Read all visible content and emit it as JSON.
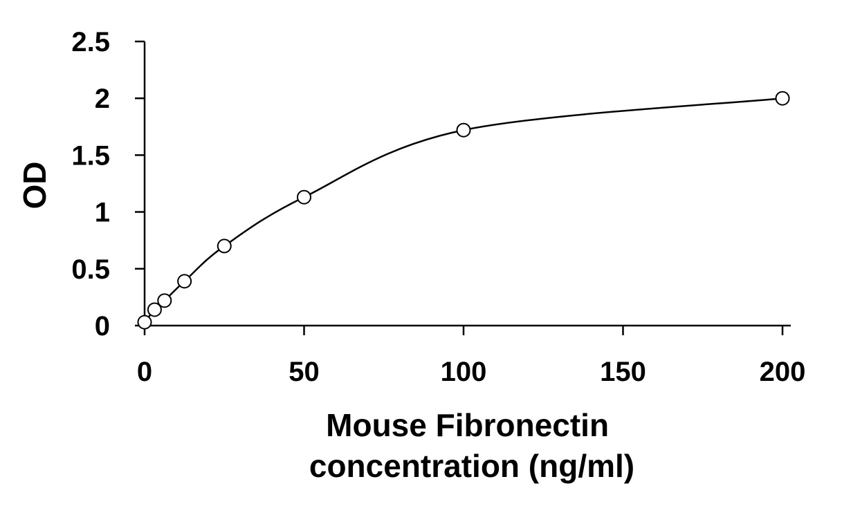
{
  "chart_data": {
    "type": "scatter",
    "xlabel": [
      "Mouse Fibronectin",
      "concentration (ng/ml)"
    ],
    "ylabel": "OD",
    "xlim": [
      0,
      200
    ],
    "ylim": [
      0,
      2.5
    ],
    "xticks": [
      0,
      50,
      100,
      150,
      200
    ],
    "xtick_labels": [
      "0",
      "50",
      "100",
      "150",
      "200"
    ],
    "yticks": [
      0,
      0.5,
      1,
      1.5,
      2,
      2.5
    ],
    "ytick_labels": [
      "0",
      "0.5",
      "1",
      "1.5",
      "2",
      "2.5"
    ],
    "grid": false,
    "series": [
      {
        "marker": "open-circle",
        "x": [
          0,
          3.125,
          6.25,
          12.5,
          25,
          50,
          100,
          200
        ],
        "y": [
          0.03,
          0.14,
          0.22,
          0.39,
          0.7,
          1.13,
          1.72,
          2.0
        ],
        "fit_line": true
      }
    ]
  }
}
